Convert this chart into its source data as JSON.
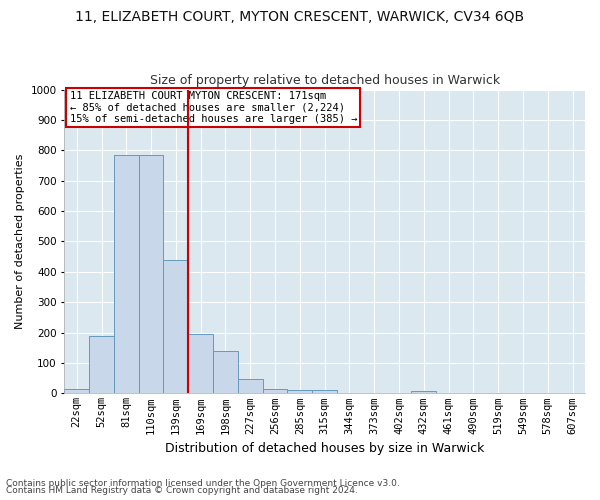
{
  "title1": "11, ELIZABETH COURT, MYTON CRESCENT, WARWICK, CV34 6QB",
  "title2": "Size of property relative to detached houses in Warwick",
  "xlabel": "Distribution of detached houses by size in Warwick",
  "ylabel": "Number of detached properties",
  "footer1": "Contains HM Land Registry data © Crown copyright and database right 2024.",
  "footer2": "Contains public sector information licensed under the Open Government Licence v3.0.",
  "bin_labels": [
    "22sqm",
    "52sqm",
    "81sqm",
    "110sqm",
    "139sqm",
    "169sqm",
    "198sqm",
    "227sqm",
    "256sqm",
    "285sqm",
    "315sqm",
    "344sqm",
    "373sqm",
    "402sqm",
    "432sqm",
    "461sqm",
    "490sqm",
    "519sqm",
    "549sqm",
    "578sqm",
    "607sqm"
  ],
  "bar_values": [
    15,
    190,
    785,
    785,
    440,
    195,
    140,
    48,
    15,
    10,
    10,
    0,
    0,
    0,
    8,
    0,
    0,
    0,
    0,
    0,
    0
  ],
  "bar_color": "#c8d8ea",
  "bar_edge_color": "#6699bb",
  "vline_x": 4.5,
  "vline_color": "#cc0000",
  "annotation_text": "11 ELIZABETH COURT MYTON CRESCENT: 171sqm\n← 85% of detached houses are smaller (2,224)\n15% of semi-detached houses are larger (385) →",
  "annotation_box_color": "#ffffff",
  "annotation_box_edge": "#cc0000",
  "ylim": [
    0,
    1000
  ],
  "yticks": [
    0,
    100,
    200,
    300,
    400,
    500,
    600,
    700,
    800,
    900,
    1000
  ],
  "bg_color": "#ffffff",
  "plot_bg_color": "#dce8f0",
  "grid_color": "#ffffff",
  "title1_fontsize": 10,
  "title2_fontsize": 9,
  "xlabel_fontsize": 9,
  "ylabel_fontsize": 8,
  "tick_fontsize": 7.5,
  "annotation_fontsize": 7.5,
  "footer_fontsize": 6.5
}
